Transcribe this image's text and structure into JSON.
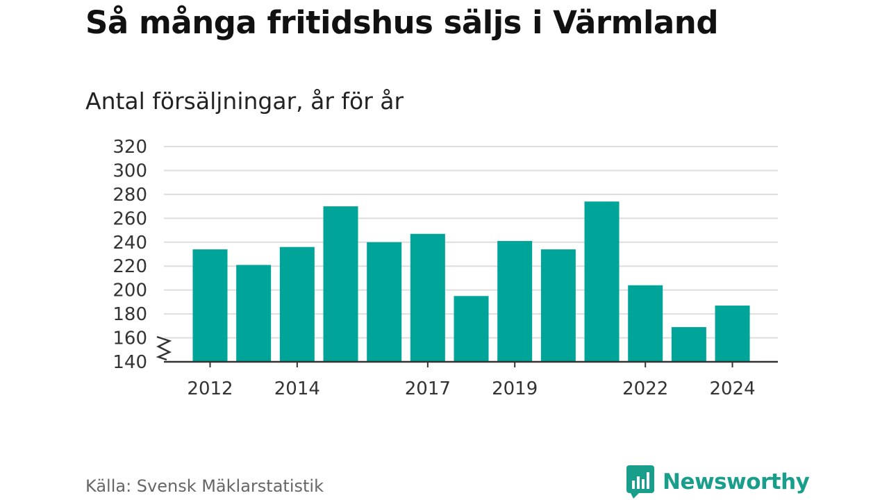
{
  "title": "Så många fritidshus säljs i Värmland",
  "subtitle": "Antal försäljningar, år för år",
  "source": "Källa: Svensk Mäklarstatistik",
  "brand": {
    "name": "Newsworthy",
    "icon": "newsworthy-logo-icon",
    "color": "#1a9e8c"
  },
  "colors": {
    "bar": "#00a499",
    "grid": "#dddddd",
    "axis": "#333333"
  },
  "chart_data": {
    "type": "bar",
    "title": "Så många fritidshus säljs i Värmland",
    "subtitle": "Antal försäljningar, år för år",
    "xlabel": "",
    "ylabel": "",
    "categories": [
      "2012",
      "2013",
      "2014",
      "2015",
      "2016",
      "2017",
      "2018",
      "2019",
      "2020",
      "2021",
      "2022",
      "2023",
      "2024"
    ],
    "values": [
      234,
      221,
      236,
      270,
      240,
      247,
      195,
      241,
      234,
      274,
      204,
      169,
      187
    ],
    "x_tick_labels": [
      "2012",
      "2014",
      "2017",
      "2019",
      "2022",
      "2024"
    ],
    "ylim": [
      140,
      320
    ],
    "y_ticks": [
      140,
      160,
      180,
      200,
      220,
      240,
      260,
      280,
      300,
      320
    ],
    "axis_break": true,
    "grid": true,
    "legend": "none"
  }
}
